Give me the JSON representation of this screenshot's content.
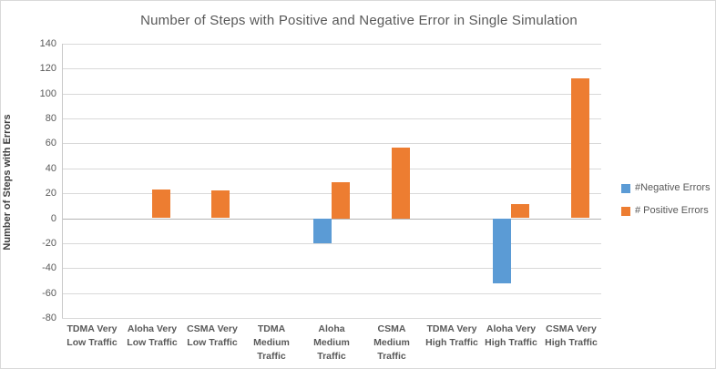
{
  "chart": {
    "title": "Number of Steps with Positive and Negative Error in Single Simulation",
    "y_axis_title": "Number of Steps with Errors"
  },
  "chart_data": {
    "type": "bar",
    "title": "Number of Steps with Positive and Negative Error in Single Simulation",
    "xlabel": "",
    "ylabel": "Number of Steps with Errors",
    "categories": [
      "TDMA Very Low Traffic",
      "Aloha Very Low Traffic",
      "CSMA Very Low Traffic",
      "TDMA Medium Traffic",
      "Aloha Medium Traffic",
      "CSMA Medium Traffic",
      "TDMA Very High Traffic",
      "Aloha Very High Traffic",
      "CSMA Very High Traffic"
    ],
    "series": [
      {
        "name": "#Negative Errors",
        "color": "#5B9BD5",
        "values": [
          0,
          0,
          0,
          0,
          -20,
          0,
          0,
          -52,
          0
        ]
      },
      {
        "name": "# Positive Errors",
        "color": "#ED7D31",
        "values": [
          0,
          23,
          22,
          0,
          29,
          57,
          0,
          11,
          112
        ]
      }
    ],
    "ylim": [
      -80,
      140
    ],
    "ytick_step": 20,
    "grid": true,
    "legend_position": "right",
    "colors": {
      "gridline": "#d9d9d9",
      "zero_line": "#b3b3b3",
      "axis_line": "#c9c9c9",
      "text": "#595959"
    }
  }
}
